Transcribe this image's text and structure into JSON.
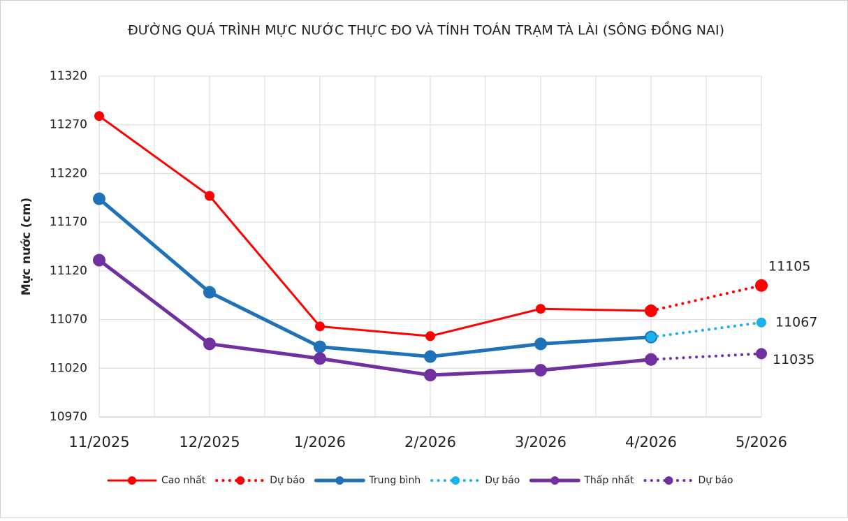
{
  "chart_data": {
    "type": "line",
    "title": "ĐƯỜNG QUÁ TRÌNH MỰC NƯỚC THỰC ĐO VÀ TÍNH TOÁN TRẠM TÀ LÀI (SÔNG ĐỒNG NAI)",
    "y_label": "Mực nước (cm)",
    "categories": [
      "11/2025",
      "12/2025",
      "1/2026",
      "2/2026",
      "3/2026",
      "4/2026",
      "5/2026"
    ],
    "series": [
      {
        "name": "Cao nhất",
        "color": "#ff0000",
        "dashed": false,
        "values": [
          11279,
          11197,
          11063,
          11053,
          11081,
          11079,
          null
        ]
      },
      {
        "name": "Dự báo",
        "color": "#ff0000",
        "dashed": true,
        "values": [
          null,
          null,
          null,
          null,
          null,
          11079,
          11105
        ]
      },
      {
        "name": "Trung bình",
        "color": "#1f72b8",
        "dashed": false,
        "values": [
          11194,
          11098,
          11042,
          11032,
          11045,
          11052,
          null
        ]
      },
      {
        "name": "Dự báo",
        "color": "#1cb0ec",
        "dashed": true,
        "values": [
          null,
          null,
          null,
          null,
          null,
          11052,
          11067
        ]
      },
      {
        "name": "Thấp nhất",
        "color": "#7030a0",
        "dashed": false,
        "values": [
          11131,
          11045,
          11030,
          11013,
          11018,
          11029,
          null
        ]
      },
      {
        "name": "Dự báo",
        "color": "#7030a0",
        "dashed": true,
        "values": [
          null,
          null,
          null,
          null,
          null,
          11029,
          11035
        ]
      }
    ],
    "ylim": [
      10970,
      11320
    ],
    "yticks": [
      10970,
      11020,
      11070,
      11120,
      11170,
      11220,
      11270,
      11320
    ],
    "grid": true,
    "legend": "bottom"
  }
}
